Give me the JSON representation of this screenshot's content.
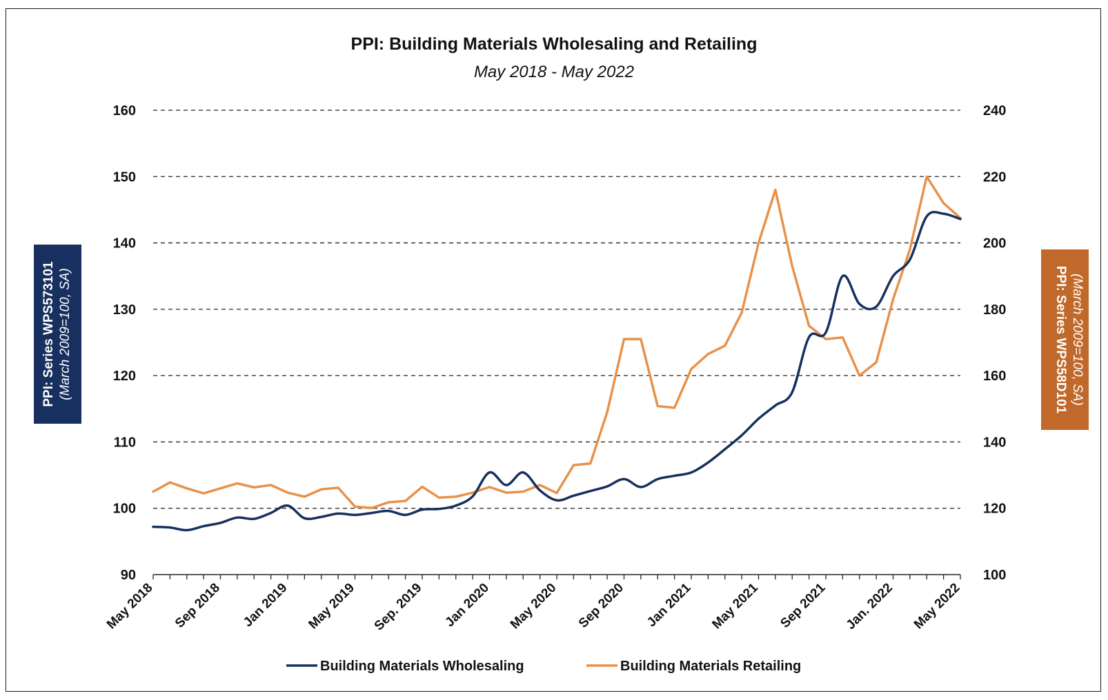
{
  "chart_data": {
    "type": "line",
    "title": "PPI: Building Materials Wholesaling and Retailing",
    "subtitle": "May 2018 - May 2022",
    "y_left": {
      "label": "PPI: Series WPS573101",
      "sublabel": "(March 2009=100, SA)",
      "range": [
        90,
        160
      ],
      "ticks": [
        90,
        100,
        110,
        120,
        130,
        140,
        150,
        160
      ],
      "box_color": "#17305F"
    },
    "y_right": {
      "label": "PPI: Series WPS58D101",
      "sublabel": "(March 2009=100, SA)",
      "range": [
        100,
        240
      ],
      "ticks": [
        100,
        120,
        140,
        160,
        180,
        200,
        220,
        240
      ],
      "box_color": "#C0692A"
    },
    "x_ticks": [
      {
        "index": 0,
        "label": "May 2018"
      },
      {
        "index": 4,
        "label": "Sep 2018"
      },
      {
        "index": 8,
        "label": "Jan 2019"
      },
      {
        "index": 12,
        "label": "May 2019"
      },
      {
        "index": 16,
        "label": "Sep. 2019"
      },
      {
        "index": 20,
        "label": "Jan 2020"
      },
      {
        "index": 24,
        "label": "May 2020"
      },
      {
        "index": 28,
        "label": "Sep 2020"
      },
      {
        "index": 32,
        "label": "Jan 2021"
      },
      {
        "index": 36,
        "label": "May 2021"
      },
      {
        "index": 40,
        "label": "Sep 2021"
      },
      {
        "index": 44,
        "label": "Jan. 2022"
      },
      {
        "index": 48,
        "label": "May 2022"
      }
    ],
    "grid": "dashed-horizontal",
    "legend_position": "bottom",
    "series": [
      {
        "name": "Building Materials Wholesaling",
        "axis": "left",
        "color": "#17305F",
        "smooth": true,
        "values": [
          97.2,
          97.1,
          96.7,
          97.3,
          97.8,
          98.6,
          98.4,
          99.3,
          100.4,
          98.5,
          98.7,
          99.2,
          99.0,
          99.3,
          99.6,
          99.0,
          99.8,
          99.9,
          100.4,
          101.8,
          105.4,
          103.5,
          105.4,
          102.7,
          101.2,
          101.9,
          102.6,
          103.3,
          104.4,
          103.2,
          104.4,
          104.9,
          105.4,
          106.9,
          108.9,
          111.0,
          113.5,
          115.5,
          117.5,
          125.8,
          126.5,
          135.0,
          130.8,
          130.4,
          135.0,
          137.5,
          144.0,
          144.4,
          143.6
        ]
      },
      {
        "name": "Building Materials Retailing",
        "axis": "right",
        "color": "#E8914A",
        "smooth": false,
        "values": [
          125.0,
          127.8,
          126.0,
          124.5,
          126.0,
          127.5,
          126.3,
          127.0,
          124.7,
          123.5,
          125.7,
          126.2,
          120.5,
          120.1,
          121.8,
          122.2,
          126.5,
          123.2,
          123.5,
          124.7,
          126.4,
          124.7,
          125.0,
          127.0,
          124.6,
          133.0,
          133.5,
          149.0,
          171.0,
          171.0,
          150.8,
          150.3,
          162.0,
          166.5,
          169.0,
          179.0,
          200.0,
          216.0,
          193.0,
          175.0,
          171.0,
          171.5,
          160.0,
          164.0,
          183.0,
          198.0,
          220.0,
          212.0,
          207.5
        ]
      }
    ]
  }
}
